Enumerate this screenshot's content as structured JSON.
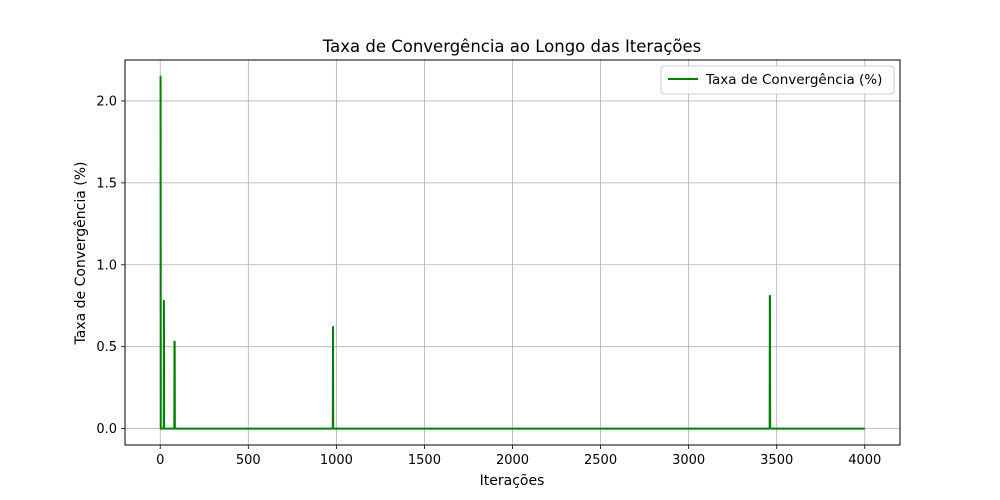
{
  "chart_data": {
    "type": "line",
    "title": "Taxa de Convergência ao Longo das Iterações",
    "xlabel": "Iterações",
    "ylabel": "Taxa de Convergência (%)",
    "xlim": [
      -200,
      4200
    ],
    "ylim": [
      -0.1,
      2.25
    ],
    "xticks": [
      0,
      500,
      1000,
      1500,
      2000,
      2500,
      3000,
      3500,
      4000
    ],
    "yticks": [
      0.0,
      0.5,
      1.0,
      1.5,
      2.0
    ],
    "xtick_labels": [
      "0",
      "500",
      "1000",
      "1500",
      "2000",
      "2500",
      "3000",
      "3500",
      "4000"
    ],
    "ytick_labels": [
      "0.0",
      "0.5",
      "1.0",
      "1.5",
      "2.0"
    ],
    "grid": true,
    "legend_position": "top-right",
    "series": [
      {
        "name": "Taxa de Convergência (%)",
        "color": "#008000",
        "x": [
          0,
          1,
          2,
          3,
          4,
          5,
          6,
          7,
          8,
          20,
          21,
          22,
          23,
          24,
          80,
          81,
          82,
          83,
          84,
          85,
          980,
          981,
          982,
          983,
          984,
          3460,
          3461,
          3462,
          3463,
          3464,
          3465,
          4000
        ],
        "y": [
          2.15,
          2.15,
          2.14,
          0.0,
          0.0,
          0.0,
          0.0,
          0.0,
          0.0,
          0.0,
          0.78,
          0.0,
          0.0,
          0.0,
          0.0,
          0.53,
          0.53,
          0.0,
          0.0,
          0.0,
          0.0,
          0.62,
          0.0,
          0.0,
          0.0,
          0.0,
          0.81,
          0.81,
          0.0,
          0.0,
          0.0,
          0.0
        ]
      }
    ]
  }
}
